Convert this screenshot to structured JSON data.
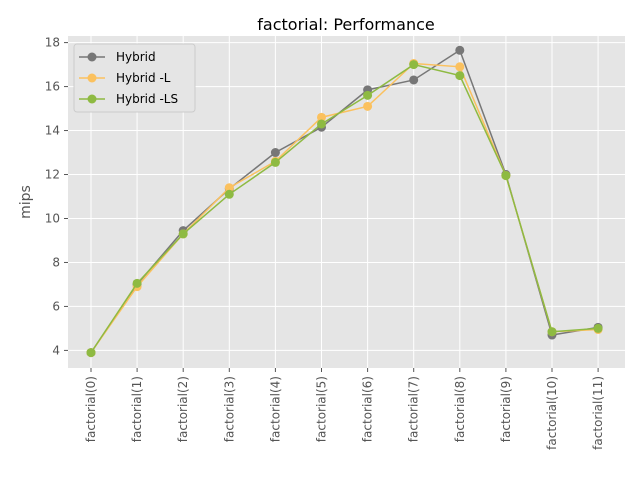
{
  "chart_data": {
    "type": "line",
    "title": "factorial: Performance",
    "xlabel": "",
    "ylabel": "mips",
    "categories": [
      "factorial(0)",
      "factorial(1)",
      "factorial(2)",
      "factorial(3)",
      "factorial(4)",
      "factorial(5)",
      "factorial(6)",
      "factorial(7)",
      "factorial(8)",
      "factorial(9)",
      "factorial(10)",
      "factorial(11)"
    ],
    "ylim": [
      3.2,
      18.3
    ],
    "yticks": [
      4,
      6,
      8,
      10,
      12,
      14,
      16,
      18
    ],
    "grid": true,
    "legend_position": "top-left",
    "background_color": "#e5e5e5",
    "grid_color": "#ffffff",
    "series": [
      {
        "name": "Hybrid",
        "color": "#777777",
        "marker": "circle",
        "values": [
          3.9,
          7.0,
          9.45,
          11.35,
          13.0,
          14.15,
          15.85,
          16.3,
          17.65,
          12.0,
          4.7,
          5.05
        ]
      },
      {
        "name": "Hybrid -L",
        "color": "#fbc15e",
        "marker": "circle",
        "values": [
          3.9,
          6.9,
          9.3,
          11.4,
          12.6,
          14.6,
          15.1,
          17.05,
          16.9,
          11.95,
          4.85,
          4.95
        ]
      },
      {
        "name": "Hybrid -LS",
        "color": "#8eba42",
        "marker": "circle",
        "values": [
          3.9,
          7.05,
          9.3,
          11.1,
          12.55,
          14.3,
          15.6,
          17.0,
          16.5,
          11.95,
          4.85,
          5.0
        ]
      }
    ]
  }
}
